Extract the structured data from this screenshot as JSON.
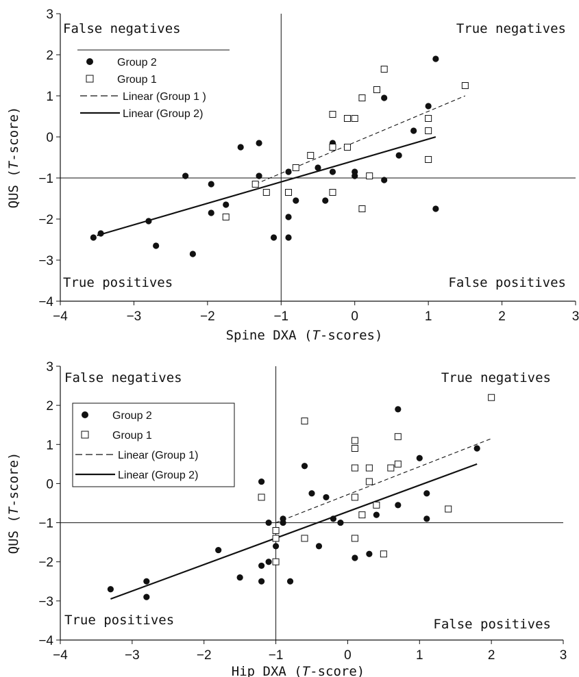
{
  "chart_data": [
    {
      "type": "scatter",
      "xlabel": "Spine DXA (T-scores)",
      "xlabel_parts": [
        "Spine DXA (",
        "T",
        "-scores)"
      ],
      "ylabel": "QUS (T-score)",
      "ylabel_parts": [
        "QUS (",
        "T",
        "-score)"
      ],
      "xlim": [
        -4,
        3
      ],
      "ylim": [
        -4,
        3
      ],
      "xticks": [
        -4,
        -3,
        -2,
        -1,
        0,
        1,
        2,
        3
      ],
      "yticks": [
        -4,
        -3,
        -2,
        -1,
        0,
        1,
        2,
        3
      ],
      "xtick_labels": [
        "−4",
        "−3",
        "−2",
        "−1",
        "0",
        "1",
        "2",
        "3"
      ],
      "ytick_labels": [
        "−4",
        "−3",
        "−2",
        "−1",
        "0",
        "1",
        "2",
        "3"
      ],
      "reference_lines": {
        "x": -1,
        "y": -1
      },
      "quadrant_labels": {
        "top_left": "False negatives",
        "top_right": "True negatives",
        "bottom_left": "True positives",
        "bottom_right": "False positives"
      },
      "legend": {
        "position": "upper-left",
        "separator_line": true,
        "box": false,
        "items": [
          {
            "label": "Group 2",
            "style": "filled-circle"
          },
          {
            "label": "Group 1",
            "style": "open-square"
          },
          {
            "label": "Linear (Group 1 )",
            "style": "dashed-line"
          },
          {
            "label": "Linear (Group 2)",
            "style": "solid-line"
          }
        ]
      },
      "series": [
        {
          "name": "Group 2",
          "marker": "filled-circle",
          "points": [
            [
              -3.55,
              -2.45
            ],
            [
              -3.45,
              -2.35
            ],
            [
              -2.8,
              -2.05
            ],
            [
              -2.7,
              -2.65
            ],
            [
              -2.3,
              -0.95
            ],
            [
              -2.2,
              -2.85
            ],
            [
              -1.95,
              -1.15
            ],
            [
              -1.95,
              -1.85
            ],
            [
              -1.75,
              -1.65
            ],
            [
              -1.55,
              -0.25
            ],
            [
              -1.3,
              -0.15
            ],
            [
              -1.3,
              -0.95
            ],
            [
              -1.1,
              -2.45
            ],
            [
              -0.9,
              -0.85
            ],
            [
              -0.9,
              -1.95
            ],
            [
              -0.9,
              -2.45
            ],
            [
              -0.8,
              -1.55
            ],
            [
              -0.5,
              -0.75
            ],
            [
              -0.4,
              -1.55
            ],
            [
              -0.3,
              -0.15
            ],
            [
              -0.3,
              -0.85
            ],
            [
              0,
              -0.85
            ],
            [
              0,
              -0.95
            ],
            [
              0.4,
              0.95
            ],
            [
              0.4,
              -1.05
            ],
            [
              0.6,
              -0.45
            ],
            [
              0.8,
              0.15
            ],
            [
              1,
              0.75
            ],
            [
              1.1,
              1.9
            ],
            [
              1.1,
              -1.75
            ]
          ]
        },
        {
          "name": "Group 1",
          "marker": "open-square",
          "points": [
            [
              -1.75,
              -1.95
            ],
            [
              -1.35,
              -1.15
            ],
            [
              -1.2,
              -1.35
            ],
            [
              -0.9,
              -1.35
            ],
            [
              -0.8,
              -0.75
            ],
            [
              -0.6,
              -0.45
            ],
            [
              -0.3,
              0.55
            ],
            [
              -0.3,
              -0.25
            ],
            [
              -0.3,
              -1.35
            ],
            [
              -0.1,
              0.45
            ],
            [
              -0.1,
              -0.25
            ],
            [
              0,
              0.45
            ],
            [
              0.1,
              0.95
            ],
            [
              0.1,
              -1.75
            ],
            [
              0.2,
              -0.95
            ],
            [
              0.3,
              1.15
            ],
            [
              0.4,
              1.65
            ],
            [
              1,
              0.45
            ],
            [
              1,
              0.15
            ],
            [
              1,
              -0.55
            ],
            [
              1.5,
              1.25
            ]
          ]
        }
      ],
      "trendlines": [
        {
          "name": "Linear (Group 1 )",
          "style": "dashed",
          "from": [
            -1.35,
            -1.15
          ],
          "to": [
            1.5,
            1.0
          ]
        },
        {
          "name": "Linear (Group 2)",
          "style": "solid",
          "from": [
            -3.5,
            -2.4
          ],
          "to": [
            1.1,
            0.0
          ]
        }
      ]
    },
    {
      "type": "scatter",
      "xlabel": "Hip DXA (T-score)",
      "xlabel_parts": [
        "Hip DXA (",
        "T",
        "-score)"
      ],
      "ylabel": "QUS (T-score)",
      "ylabel_parts": [
        "QUS (",
        "T",
        "-score)"
      ],
      "xlim": [
        -4,
        3
      ],
      "ylim": [
        -4,
        3
      ],
      "xticks": [
        -4,
        -3,
        -2,
        -1,
        0,
        1,
        2,
        3
      ],
      "yticks": [
        -4,
        -3,
        -2,
        -1,
        0,
        1,
        2,
        3
      ],
      "xtick_labels": [
        "−4",
        "−3",
        "−2",
        "−1",
        "0",
        "1",
        "2",
        "3"
      ],
      "ytick_labels": [
        "−4",
        "−3",
        "−2",
        "−1",
        "0",
        "1",
        "2",
        "3"
      ],
      "reference_lines": {
        "x": -1,
        "y": -1
      },
      "quadrant_labels": {
        "top_left": "False negatives",
        "top_right": "True negatives",
        "bottom_left": "True positives",
        "bottom_right": "False positives"
      },
      "legend": {
        "position": "upper-left",
        "separator_line": false,
        "box": true,
        "items": [
          {
            "label": "Group 2",
            "style": "filled-circle"
          },
          {
            "label": "Group 1",
            "style": "open-square"
          },
          {
            "label": "Linear (Group 1)",
            "style": "dashed-line"
          },
          {
            "label": "Linear (Group 2)",
            "style": "solid-line"
          }
        ]
      },
      "series": [
        {
          "name": "Group 2",
          "marker": "filled-circle",
          "points": [
            [
              -3.3,
              -2.7
            ],
            [
              -2.8,
              -2.5
            ],
            [
              -2.8,
              -2.9
            ],
            [
              -1.8,
              -1.7
            ],
            [
              -1.5,
              -2.4
            ],
            [
              -1.2,
              0.05
            ],
            [
              -1.2,
              -2.1
            ],
            [
              -1.2,
              -2.5
            ],
            [
              -1.1,
              -1.0
            ],
            [
              -1.1,
              -2.0
            ],
            [
              -1,
              -1.6
            ],
            [
              -0.9,
              -0.9
            ],
            [
              -0.9,
              -1.0
            ],
            [
              -0.8,
              -2.5
            ],
            [
              -0.6,
              0.45
            ],
            [
              -0.5,
              -0.25
            ],
            [
              -0.4,
              -1.6
            ],
            [
              -0.3,
              -0.35
            ],
            [
              -0.2,
              -0.9
            ],
            [
              -0.1,
              -1.0
            ],
            [
              0.1,
              -1.9
            ],
            [
              0.3,
              -1.8
            ],
            [
              0.4,
              -0.8
            ],
            [
              0.7,
              1.9
            ],
            [
              0.7,
              -0.55
            ],
            [
              1,
              0.65
            ],
            [
              1.1,
              -0.25
            ],
            [
              1.1,
              -0.9
            ],
            [
              1.8,
              0.9
            ]
          ]
        },
        {
          "name": "Group 1",
          "marker": "open-square",
          "points": [
            [
              -1.2,
              -0.35
            ],
            [
              -1,
              -1.2
            ],
            [
              -1,
              -1.4
            ],
            [
              -1,
              -2.0
            ],
            [
              -0.6,
              1.6
            ],
            [
              -0.6,
              -1.4
            ],
            [
              0.1,
              1.1
            ],
            [
              0.1,
              0.9
            ],
            [
              0.1,
              0.4
            ],
            [
              0.1,
              -0.35
            ],
            [
              0.1,
              -1.4
            ],
            [
              0.2,
              -0.8
            ],
            [
              0.3,
              0.4
            ],
            [
              0.3,
              0.05
            ],
            [
              0.4,
              -0.55
            ],
            [
              0.5,
              -1.8
            ],
            [
              0.6,
              0.4
            ],
            [
              0.7,
              1.2
            ],
            [
              0.7,
              0.5
            ],
            [
              1.4,
              -0.65
            ],
            [
              2,
              2.2
            ]
          ]
        }
      ],
      "trendlines": [
        {
          "name": "Linear (Group 1)",
          "style": "dashed",
          "from": [
            -1.0,
            -1.0
          ],
          "to": [
            2.0,
            1.15
          ]
        },
        {
          "name": "Linear (Group 2)",
          "style": "solid",
          "from": [
            -3.3,
            -2.95
          ],
          "to": [
            1.8,
            0.5
          ]
        }
      ]
    }
  ]
}
